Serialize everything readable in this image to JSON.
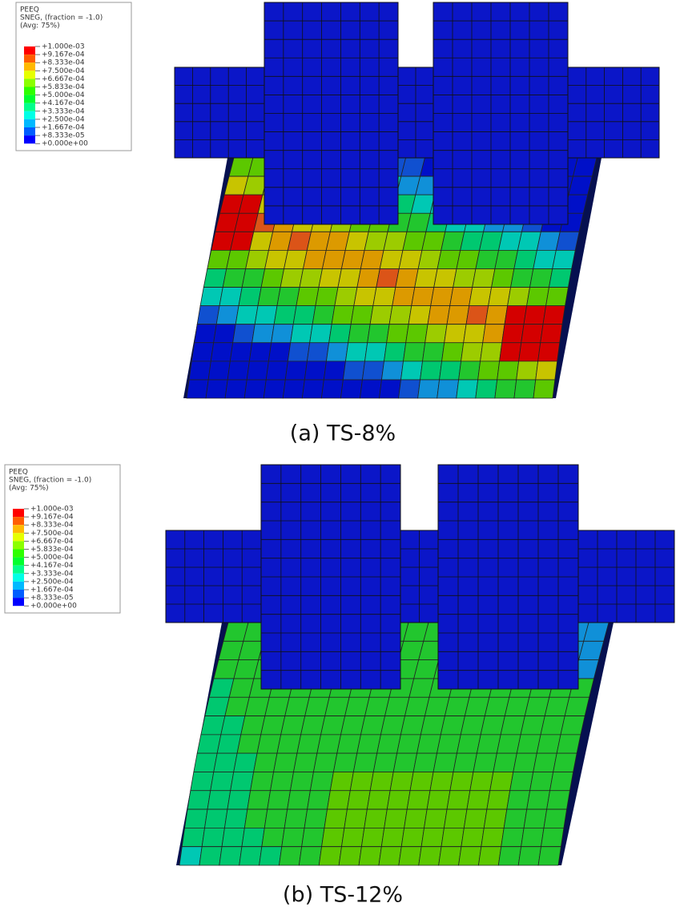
{
  "panels": [
    {
      "legend": {
        "variable": "PEEQ",
        "description": "SNEG, (fraction = -1.0)",
        "averaging": "(Avg: 75%)",
        "labels": [
          "+1.000e-03",
          "+9.167e-04",
          "+8.333e-04",
          "+7.500e-04",
          "+6.667e-04",
          "+5.833e-04",
          "+5.000e-04",
          "+4.167e-04",
          "+3.333e-04",
          "+2.500e-04",
          "+1.667e-04",
          "+8.333e-05",
          "+0.000e+00"
        ]
      },
      "caption": "(a) TS-8%"
    },
    {
      "legend": {
        "variable": "PEEQ",
        "description": "SNEG, (fraction = -1.0)",
        "averaging": "(Avg: 75%)",
        "labels": [
          "+1.000e-03",
          "+9.167e-04",
          "+8.333e-04",
          "+7.500e-04",
          "+6.667e-04",
          "+5.833e-04",
          "+5.000e-04",
          "+4.167e-04",
          "+3.333e-04",
          "+2.500e-04",
          "+1.667e-04",
          "+8.333e-05",
          "+0.000e+00"
        ]
      },
      "caption": "(b) TS-12%"
    }
  ]
}
